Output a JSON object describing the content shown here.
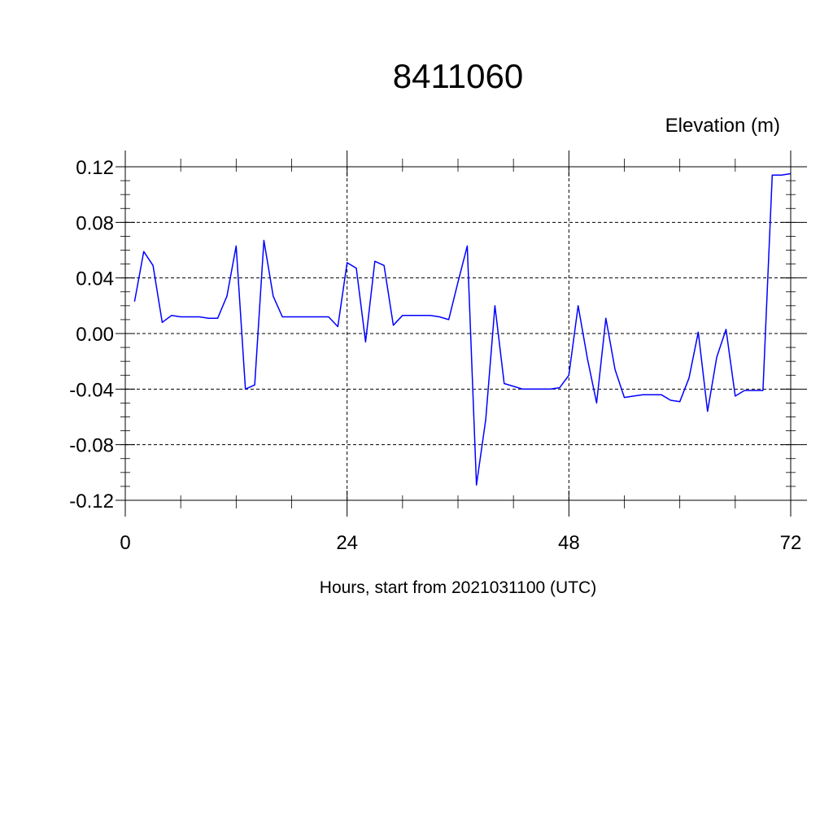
{
  "chart_data": {
    "type": "line",
    "title": "8411060",
    "ylabel": "Elevation (m)",
    "xlabel": "Hours, start from 2021031100 (UTC)",
    "xlim": [
      0,
      72
    ],
    "ylim": [
      -0.12,
      0.12
    ],
    "x_ticks": [
      0,
      24,
      48,
      72
    ],
    "x_tick_labels": [
      "0",
      "24",
      "48",
      "72"
    ],
    "y_ticks": [
      0.12,
      0.08,
      0.04,
      0.0,
      -0.04,
      -0.08,
      -0.12
    ],
    "y_tick_labels": [
      "0.12",
      "0.08",
      "0.04",
      "0.00",
      "-0.04",
      "-0.08",
      "-0.12"
    ],
    "grid": true,
    "legend": "none",
    "series": [
      {
        "color": "#0000ff",
        "x": [
          1,
          2,
          3,
          4,
          5,
          6,
          7,
          8,
          9,
          10,
          11,
          12,
          13,
          14,
          15,
          16,
          17,
          18,
          19,
          20,
          21,
          22,
          23,
          24,
          25,
          26,
          27,
          28,
          29,
          30,
          31,
          32,
          33,
          34,
          35,
          36,
          37,
          38,
          39,
          40,
          41,
          42,
          43,
          44,
          45,
          46,
          47,
          48,
          49,
          50,
          51,
          52,
          53,
          54,
          55,
          56,
          57,
          58,
          59,
          60,
          61,
          62,
          63,
          64,
          65,
          66,
          67,
          68,
          69,
          70,
          71,
          72
        ],
        "y": [
          0.023,
          0.059,
          0.049,
          0.008,
          0.013,
          0.012,
          0.012,
          0.012,
          0.011,
          0.011,
          0.027,
          0.063,
          -0.04,
          -0.037,
          0.067,
          0.027,
          0.012,
          0.012,
          0.012,
          0.012,
          0.012,
          0.012,
          0.005,
          0.051,
          0.047,
          -0.006,
          0.052,
          0.049,
          0.006,
          0.013,
          0.013,
          0.013,
          0.013,
          0.012,
          0.01,
          0.037,
          0.063,
          -0.109,
          -0.062,
          0.02,
          -0.036,
          -0.038,
          -0.04,
          -0.04,
          -0.04,
          -0.04,
          -0.039,
          -0.03,
          0.02,
          -0.018,
          -0.05,
          0.011,
          -0.026,
          -0.046,
          -0.045,
          -0.044,
          -0.044,
          -0.044,
          -0.048,
          -0.049,
          -0.032,
          0.001,
          -0.056,
          -0.017,
          0.003,
          -0.045,
          -0.041,
          -0.041,
          -0.041,
          0.114,
          0.114,
          0.115
        ]
      }
    ]
  }
}
